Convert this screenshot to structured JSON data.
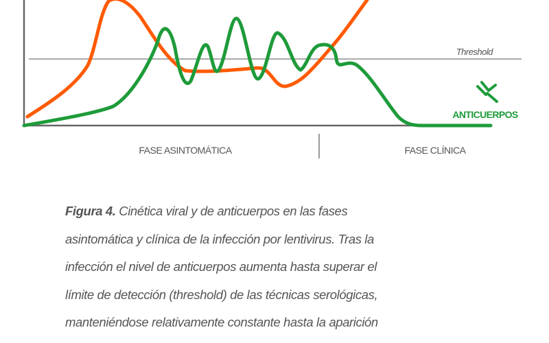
{
  "figure": {
    "threshold_label": "Threshold",
    "antibody_label": "ANTICUERPOS",
    "phases": [
      "FASE ASINTOMÁTICA",
      "FASE CLÍNICA"
    ]
  },
  "caption": {
    "label": "Figura 4.",
    "lines": [
      "Cinética viral y de anticuerpos en las fases",
      "asintomática y clínica de la infección por lentivirus. Tras la",
      "infección el nivel de anticuerpos aumenta hasta superar el",
      "límite de detección (threshold) de las técnicas serológicas,",
      "manteniéndose relativamente constante hasta la aparición"
    ]
  }
}
